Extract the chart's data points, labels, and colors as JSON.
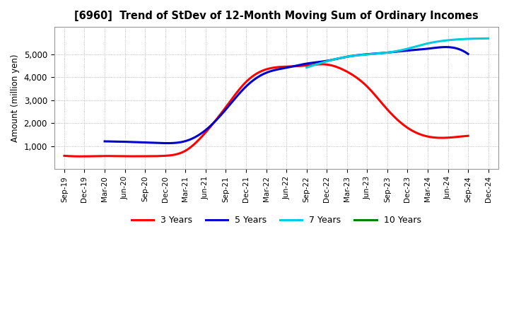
{
  "title": "[6960]  Trend of StDev of 12-Month Moving Sum of Ordinary Incomes",
  "ylabel": "Amount (million yen)",
  "background_color": "#ffffff",
  "plot_background": "#ffffff",
  "grid_color": "#888888",
  "x_labels": [
    "Sep-19",
    "Dec-19",
    "Mar-20",
    "Jun-20",
    "Sep-20",
    "Dec-20",
    "Mar-21",
    "Jun-21",
    "Sep-21",
    "Dec-21",
    "Mar-22",
    "Jun-22",
    "Sep-22",
    "Dec-22",
    "Mar-23",
    "Jun-23",
    "Sep-23",
    "Dec-23",
    "Mar-24",
    "Jun-24",
    "Sep-24",
    "Dec-24"
  ],
  "series": {
    "3 Years": {
      "color": "#ff0000",
      "data_y": [
        580,
        555,
        570,
        560,
        560,
        580,
        800,
        1600,
        2700,
        3800,
        4350,
        4470,
        4520,
        4560,
        4250,
        3600,
        2600,
        1800,
        1420,
        1370,
        1450,
        null
      ]
    },
    "5 Years": {
      "color": "#0000cc",
      "data_y": [
        null,
        null,
        1210,
        1190,
        1160,
        1130,
        1220,
        1700,
        2600,
        3600,
        4200,
        4420,
        4600,
        4720,
        4900,
        5010,
        5080,
        5170,
        5250,
        5320,
        5020,
        null
      ]
    },
    "7 Years": {
      "color": "#00ccdd",
      "data_y": [
        null,
        null,
        null,
        null,
        null,
        null,
        null,
        null,
        null,
        null,
        null,
        null,
        4430,
        4700,
        4900,
        5000,
        5080,
        5250,
        5480,
        5620,
        5680,
        5700
      ]
    },
    "10 Years": {
      "color": "#008000",
      "data_y": [
        null,
        null,
        null,
        null,
        null,
        null,
        null,
        null,
        null,
        null,
        null,
        null,
        null,
        null,
        null,
        null,
        null,
        null,
        null,
        null,
        null,
        null
      ]
    }
  },
  "ylim": [
    0,
    6200
  ],
  "yticks": [
    1000,
    2000,
    3000,
    4000,
    5000
  ],
  "legend_labels": [
    "3 Years",
    "5 Years",
    "7 Years",
    "10 Years"
  ],
  "legend_colors": [
    "#ff0000",
    "#0000cc",
    "#00ccdd",
    "#008000"
  ]
}
